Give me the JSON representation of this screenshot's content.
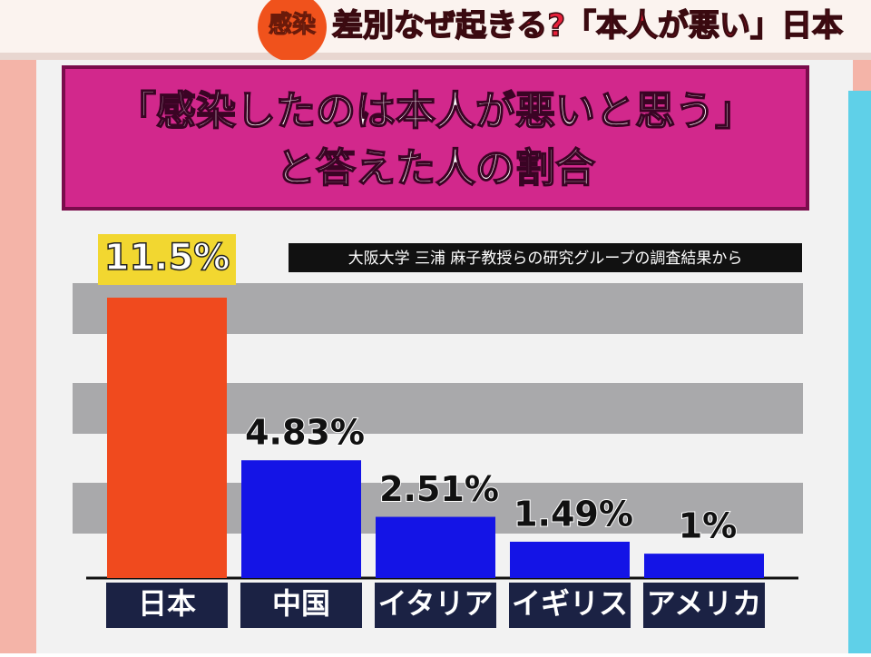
{
  "banner": {
    "tag": "感染",
    "headline": "差別なぜ起きる?「本人が悪い」日本"
  },
  "chart_data": {
    "type": "bar",
    "title": [
      "「感染したのは本人が悪いと思う」",
      "と答えた人の割合"
    ],
    "note": "大阪大学 三浦 麻子教授らの研究グループの調査結果から",
    "categories": [
      "日本",
      "中国",
      "イタリア",
      "イギリス",
      "アメリカ"
    ],
    "values": [
      11.5,
      4.83,
      2.51,
      1.49,
      1
    ],
    "value_labels": [
      "11.5%",
      "4.83%",
      "2.51%",
      "1.49%",
      "1%"
    ],
    "colors": [
      "#f04a1e",
      "#1414e6",
      "#1414e6",
      "#1414e6",
      "#1414e6"
    ]
  }
}
